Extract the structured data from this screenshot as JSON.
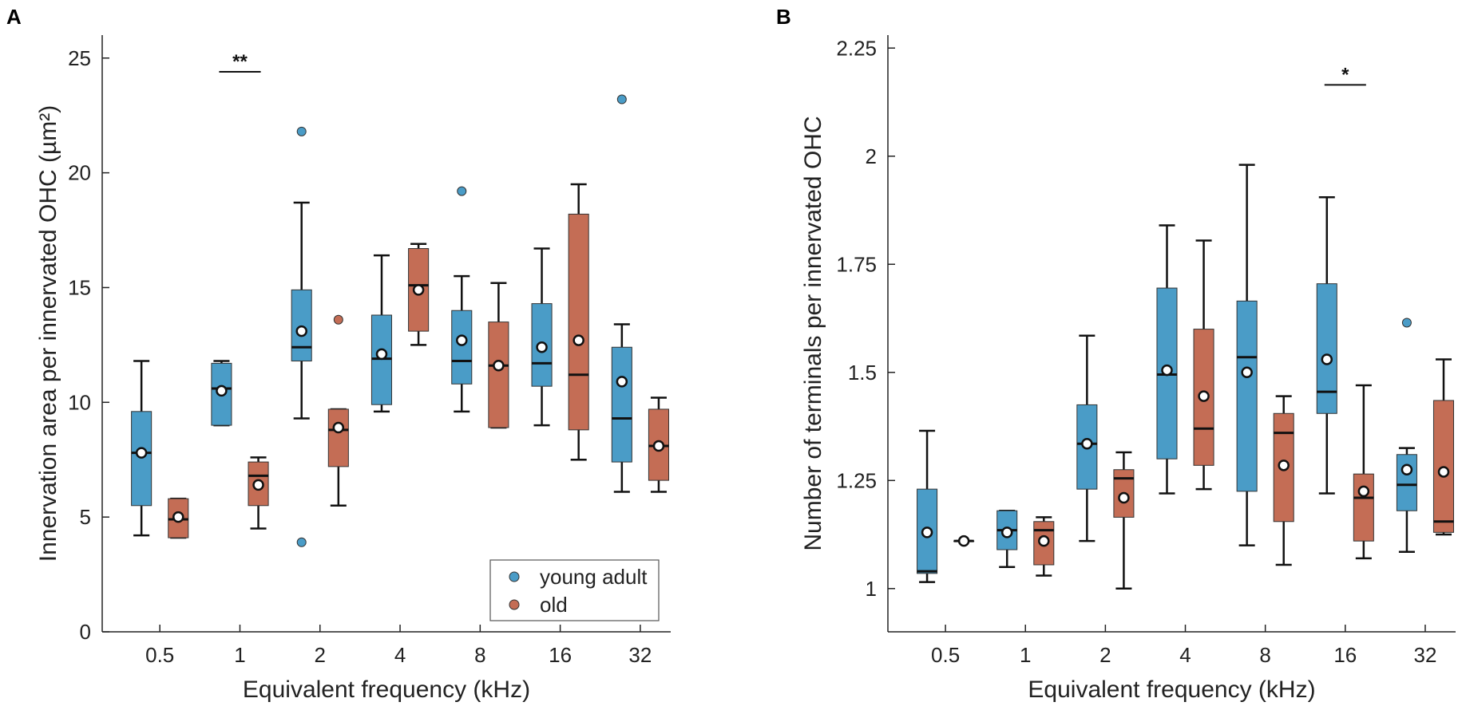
{
  "colors": {
    "young_adult": "#4a9cc7",
    "old": "#c46d55",
    "axis": "#222222"
  },
  "chart_data": [
    {
      "panel_label": "A",
      "type": "box",
      "xlabel": "Equivalent frequency (kHz)",
      "ylabel": "Innervation area per innervated OHC (µm²)",
      "ylim": [
        0,
        26
      ],
      "yticks": [
        0,
        5,
        10,
        15,
        20,
        25
      ],
      "ytick_labels": [
        "0",
        "5",
        "10",
        "15",
        "20",
        "25"
      ],
      "categories": [
        "0.5",
        "1",
        "2",
        "4",
        "8",
        "16",
        "32"
      ],
      "legend": {
        "position": "bottom-right",
        "entries": [
          "young adult",
          "old"
        ]
      },
      "series": [
        {
          "name": "young adult",
          "boxes": [
            {
              "wlo": 4.2,
              "q1": 5.5,
              "med": 7.8,
              "q3": 9.6,
              "whi": 11.8,
              "mean": 7.8,
              "outliers": []
            },
            {
              "wlo": 9.0,
              "q1": 9.0,
              "med": 10.6,
              "q3": 11.7,
              "whi": 11.8,
              "mean": 10.5,
              "outliers": []
            },
            {
              "wlo": 9.3,
              "q1": 11.8,
              "med": 12.4,
              "q3": 14.9,
              "whi": 18.7,
              "mean": 13.1,
              "outliers": [
                21.8,
                3.9
              ]
            },
            {
              "wlo": 9.6,
              "q1": 9.9,
              "med": 11.9,
              "q3": 13.8,
              "whi": 16.4,
              "mean": 12.1,
              "outliers": []
            },
            {
              "wlo": 9.6,
              "q1": 10.8,
              "med": 11.8,
              "q3": 14.0,
              "whi": 15.5,
              "mean": 12.7,
              "outliers": [
                19.2
              ]
            },
            {
              "wlo": 9.0,
              "q1": 10.7,
              "med": 11.7,
              "q3": 14.3,
              "whi": 16.7,
              "mean": 12.4,
              "outliers": []
            },
            {
              "wlo": 6.1,
              "q1": 7.4,
              "med": 9.3,
              "q3": 12.4,
              "whi": 13.4,
              "mean": 10.9,
              "outliers": [
                23.2
              ]
            }
          ]
        },
        {
          "name": "old",
          "boxes": [
            {
              "wlo": 4.1,
              "q1": 4.1,
              "med": 4.9,
              "q3": 5.8,
              "whi": 5.8,
              "mean": 5.0,
              "outliers": []
            },
            {
              "wlo": 4.5,
              "q1": 5.5,
              "med": 6.8,
              "q3": 7.4,
              "whi": 7.6,
              "mean": 6.4,
              "outliers": []
            },
            {
              "wlo": 5.5,
              "q1": 7.2,
              "med": 8.8,
              "q3": 9.7,
              "whi": 9.7,
              "mean": 8.9,
              "outliers": [
                13.6
              ]
            },
            {
              "wlo": 12.5,
              "q1": 13.1,
              "med": 15.1,
              "q3": 16.7,
              "whi": 16.9,
              "mean": 14.9,
              "outliers": []
            },
            {
              "wlo": 8.9,
              "q1": 8.9,
              "med": 11.6,
              "q3": 13.5,
              "whi": 15.2,
              "mean": 11.6,
              "outliers": []
            },
            {
              "wlo": 7.5,
              "q1": 8.8,
              "med": 11.2,
              "q3": 18.2,
              "whi": 19.5,
              "mean": 12.7,
              "outliers": []
            },
            {
              "wlo": 6.1,
              "q1": 6.6,
              "med": 8.1,
              "q3": 9.7,
              "whi": 10.2,
              "mean": 8.1,
              "outliers": []
            }
          ]
        }
      ],
      "annotations": [
        {
          "text": "**",
          "category_index": 1,
          "y": 24.4
        }
      ]
    },
    {
      "panel_label": "B",
      "type": "box",
      "xlabel": "Equivalent frequency (kHz)",
      "ylabel": "Number of terminals per innervated OHC",
      "ylim": [
        0.9,
        2.28
      ],
      "yticks": [
        1,
        1.25,
        1.5,
        1.75,
        2,
        2.25
      ],
      "ytick_labels": [
        "1",
        "1.25",
        "1.5",
        "1.75",
        "2",
        "2.25"
      ],
      "categories": [
        "0.5",
        "1",
        "2",
        "4",
        "8",
        "16",
        "32"
      ],
      "series": [
        {
          "name": "young adult",
          "boxes": [
            {
              "wlo": 1.015,
              "q1": 1.035,
              "med": 1.04,
              "q3": 1.23,
              "whi": 1.365,
              "mean": 1.13,
              "outliers": []
            },
            {
              "wlo": 1.05,
              "q1": 1.09,
              "med": 1.135,
              "q3": 1.18,
              "whi": 1.18,
              "mean": 1.13,
              "outliers": []
            },
            {
              "wlo": 1.11,
              "q1": 1.23,
              "med": 1.335,
              "q3": 1.425,
              "whi": 1.585,
              "mean": 1.335,
              "outliers": []
            },
            {
              "wlo": 1.22,
              "q1": 1.3,
              "med": 1.495,
              "q3": 1.695,
              "whi": 1.84,
              "mean": 1.505,
              "outliers": []
            },
            {
              "wlo": 1.1,
              "q1": 1.225,
              "med": 1.535,
              "q3": 1.665,
              "whi": 1.98,
              "mean": 1.5,
              "outliers": []
            },
            {
              "wlo": 1.22,
              "q1": 1.405,
              "med": 1.455,
              "q3": 1.705,
              "whi": 1.905,
              "mean": 1.53,
              "outliers": []
            },
            {
              "wlo": 1.085,
              "q1": 1.18,
              "med": 1.24,
              "q3": 1.31,
              "whi": 1.325,
              "mean": 1.275,
              "outliers": [
                1.615
              ]
            }
          ]
        },
        {
          "name": "old",
          "boxes": [
            {
              "wlo": 1.11,
              "q1": 1.11,
              "med": 1.11,
              "q3": 1.11,
              "whi": 1.11,
              "mean": 1.11,
              "outliers": []
            },
            {
              "wlo": 1.03,
              "q1": 1.055,
              "med": 1.135,
              "q3": 1.155,
              "whi": 1.165,
              "mean": 1.11,
              "outliers": []
            },
            {
              "wlo": 1.0,
              "q1": 1.165,
              "med": 1.255,
              "q3": 1.275,
              "whi": 1.315,
              "mean": 1.21,
              "outliers": []
            },
            {
              "wlo": 1.23,
              "q1": 1.285,
              "med": 1.37,
              "q3": 1.6,
              "whi": 1.805,
              "mean": 1.445,
              "outliers": []
            },
            {
              "wlo": 1.055,
              "q1": 1.155,
              "med": 1.36,
              "q3": 1.405,
              "whi": 1.445,
              "mean": 1.285,
              "outliers": []
            },
            {
              "wlo": 1.07,
              "q1": 1.11,
              "med": 1.21,
              "q3": 1.265,
              "whi": 1.47,
              "mean": 1.225,
              "outliers": []
            },
            {
              "wlo": 1.125,
              "q1": 1.13,
              "med": 1.155,
              "q3": 1.435,
              "whi": 1.53,
              "mean": 1.27,
              "outliers": []
            }
          ]
        }
      ],
      "annotations": [
        {
          "text": "*",
          "category_index": 5,
          "y": 2.165
        }
      ]
    }
  ]
}
